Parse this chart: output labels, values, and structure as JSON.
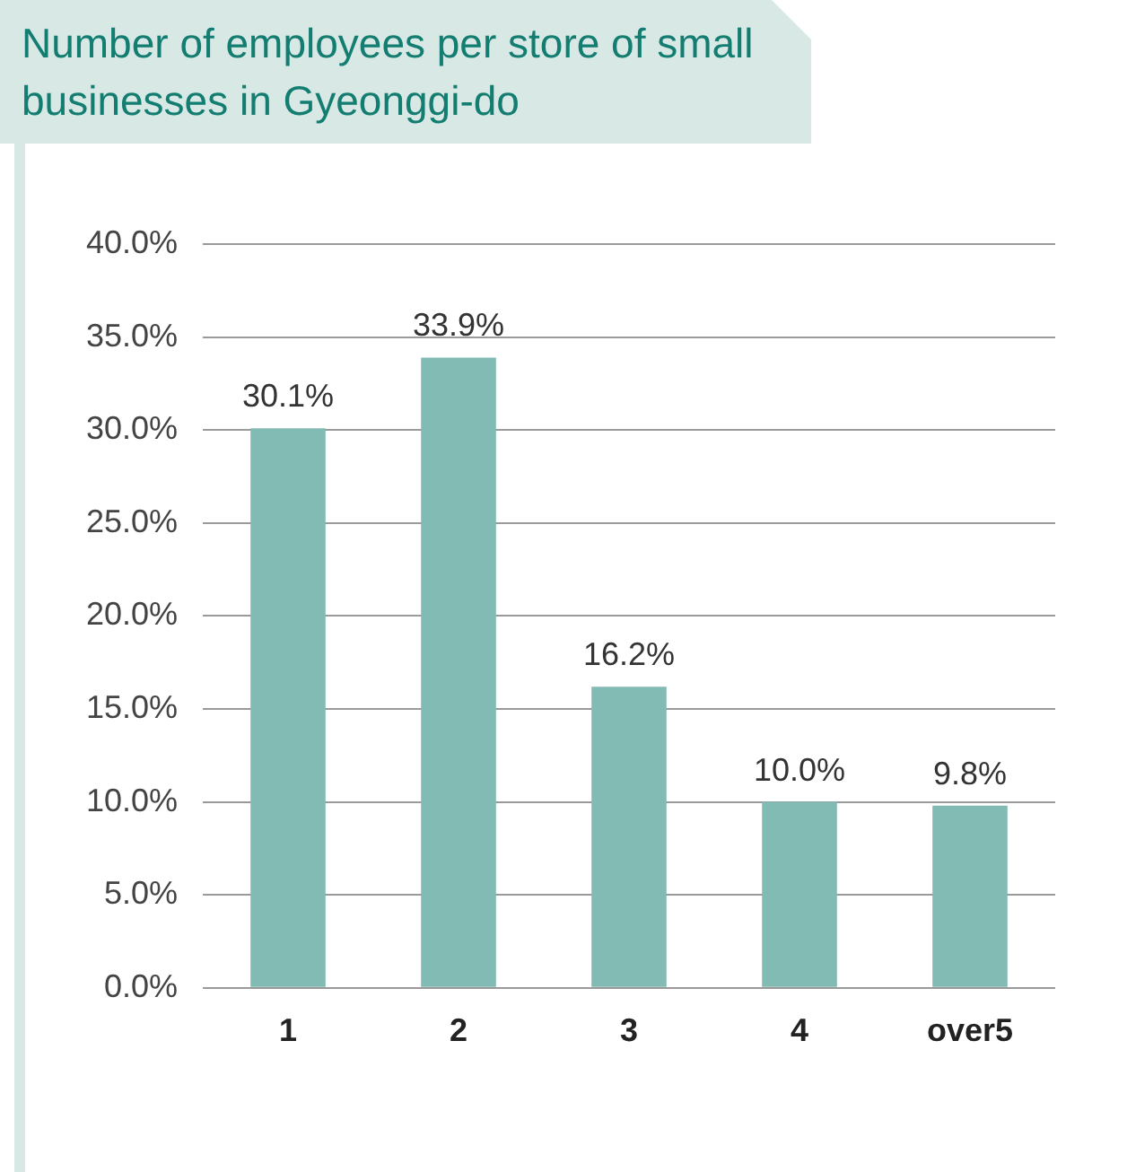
{
  "chart_data": {
    "type": "bar",
    "title": "Number of employees per store of small businesses in Gyeonggi-do",
    "categories": [
      "1",
      "2",
      "3",
      "4",
      "over5"
    ],
    "values": [
      30.1,
      33.9,
      16.2,
      10.0,
      9.8
    ],
    "value_labels": [
      "30.1%",
      "33.9%",
      "16.2%",
      "10.0%",
      "9.8%"
    ],
    "color": "#82bbb3",
    "ylim": [
      0,
      40
    ],
    "yticks": [
      {
        "value": 0,
        "label": "0.0%"
      },
      {
        "value": 5,
        "label": "5.0%"
      },
      {
        "value": 10,
        "label": "10.0%"
      },
      {
        "value": 15,
        "label": "15.0%"
      },
      {
        "value": 20,
        "label": "20.0%"
      },
      {
        "value": 25,
        "label": "25.0%"
      },
      {
        "value": 30,
        "label": "30.0%"
      },
      {
        "value": 35,
        "label": "35.0%"
      },
      {
        "value": 40,
        "label": "40.0%"
      }
    ],
    "grid": "y",
    "legend": false
  }
}
